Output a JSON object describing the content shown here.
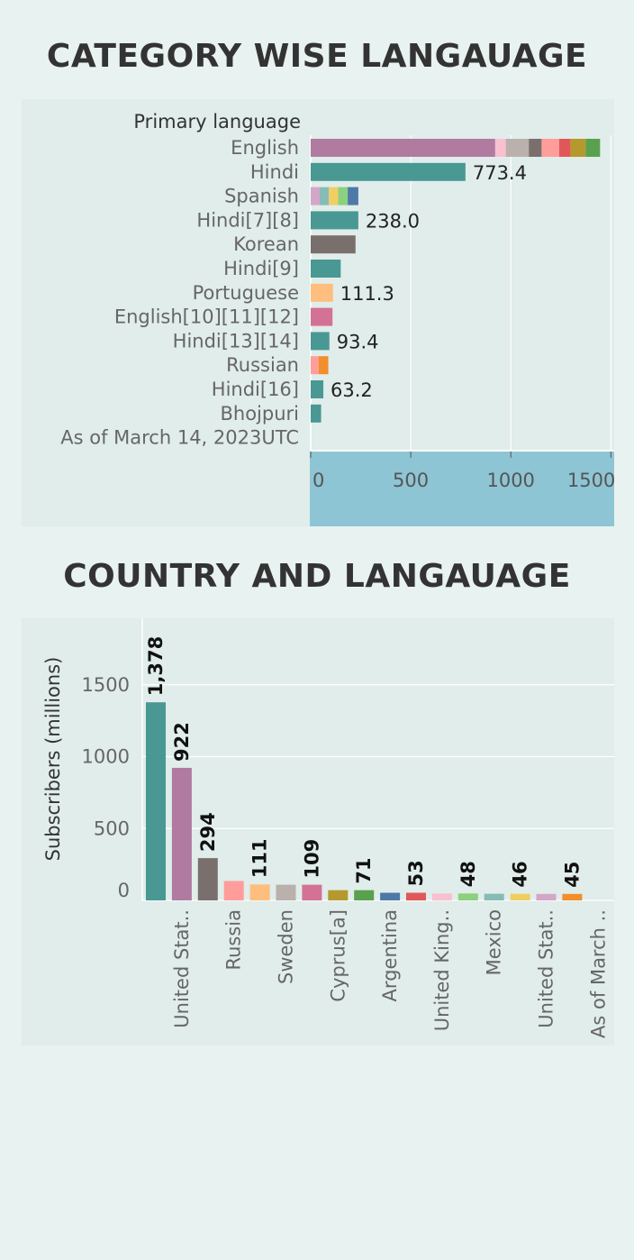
{
  "charts": {
    "titles": [
      "CATEGORY WISE LANGAUAGE",
      "COUNTRY  AND LANGAUAGE"
    ]
  },
  "chart_data": [
    {
      "type": "bar",
      "orientation": "horizontal",
      "stacked": true,
      "title": "CATEGORY WISE LANGAUAGE",
      "row_header": "Primary language",
      "categories": [
        "English",
        "Hindi",
        "Spanish",
        "Hindi[7][8]",
        "Korean",
        "Hindi[9]",
        "Portuguese",
        "English[10][11][12]",
        "Hindi[13][14]",
        "Russian",
        "Hindi[16]",
        "Bhojpuri",
        "As of March 14, 2023UTC"
      ],
      "segments": [
        [
          {
            "value": 922,
            "color": "#b07aa1"
          },
          {
            "value": 53,
            "color": "#f9c0d0"
          },
          {
            "value": 115,
            "color": "#bab0ac"
          },
          {
            "value": 64,
            "color": "#79706e"
          },
          {
            "value": 88,
            "color": "#ff9d9a"
          },
          {
            "value": 56,
            "color": "#e15759"
          },
          {
            "value": 76,
            "color": "#b6992d"
          },
          {
            "value": 72,
            "color": "#59a14f"
          }
        ],
        [
          {
            "value": 773.4,
            "color": "#499894"
          }
        ],
        [
          {
            "value": 45,
            "color": "#d4a6c8"
          },
          {
            "value": 46,
            "color": "#86bcb6"
          },
          {
            "value": 46,
            "color": "#f1ce63"
          },
          {
            "value": 48,
            "color": "#8cd17d"
          },
          {
            "value": 53,
            "color": "#4e79a7"
          }
        ],
        [
          {
            "value": 238.0,
            "color": "#499894"
          }
        ],
        [
          {
            "value": 224,
            "color": "#79706e"
          }
        ],
        [
          {
            "value": 150,
            "color": "#499894"
          }
        ],
        [
          {
            "value": 111.3,
            "color": "#ffbe7d"
          }
        ],
        [
          {
            "value": 109,
            "color": "#d37295"
          }
        ],
        [
          {
            "value": 93.4,
            "color": "#499894"
          }
        ],
        [
          {
            "value": 40,
            "color": "#ff9d9a"
          },
          {
            "value": 48,
            "color": "#f28e2b"
          }
        ],
        [
          {
            "value": 63.2,
            "color": "#499894"
          }
        ],
        [
          {
            "value": 52,
            "color": "#499894"
          }
        ],
        []
      ],
      "labels": [
        "",
        "773.4",
        "",
        "238.0",
        "",
        "",
        "111.3",
        "",
        "93.4",
        "",
        "63.2",
        "",
        ""
      ],
      "xticks": [
        0,
        500,
        1000,
        1500
      ],
      "xlim": [
        0,
        1500
      ]
    },
    {
      "type": "bar",
      "title": "COUNTRY  AND LANGAUAGE",
      "ylabel": "Subscribers (millions)",
      "yticks": [
        0,
        500,
        1000,
        1500
      ],
      "ylim": [
        0,
        1900
      ],
      "tick_labels": [
        "United Stat..",
        "Russia",
        "Sweden",
        "Cyprus[a]",
        "Argentina",
        "United King..",
        "Mexico",
        "United Stat..",
        "As of March .."
      ],
      "values": [
        1378,
        922,
        294,
        135,
        111,
        109,
        109,
        71,
        71,
        53,
        53,
        48,
        48,
        46,
        46,
        45,
        45
      ],
      "colors": [
        "#499894",
        "#b07aa1",
        "#79706e",
        "#ff9d9a",
        "#ffbe7d",
        "#bab0ac",
        "#d37295",
        "#b6992d",
        "#59a14f",
        "#4e79a7",
        "#e15759",
        "#f9c0d0",
        "#8cd17d",
        "#86bcb6",
        "#f1ce63",
        "#d4a6c8",
        "#f28e2b"
      ],
      "labels": [
        "1,378",
        "922",
        "294",
        "",
        "111",
        "",
        "109",
        "",
        "71",
        "",
        "53",
        "",
        "48",
        "",
        "46",
        "",
        "45"
      ],
      "grid": true
    }
  ]
}
